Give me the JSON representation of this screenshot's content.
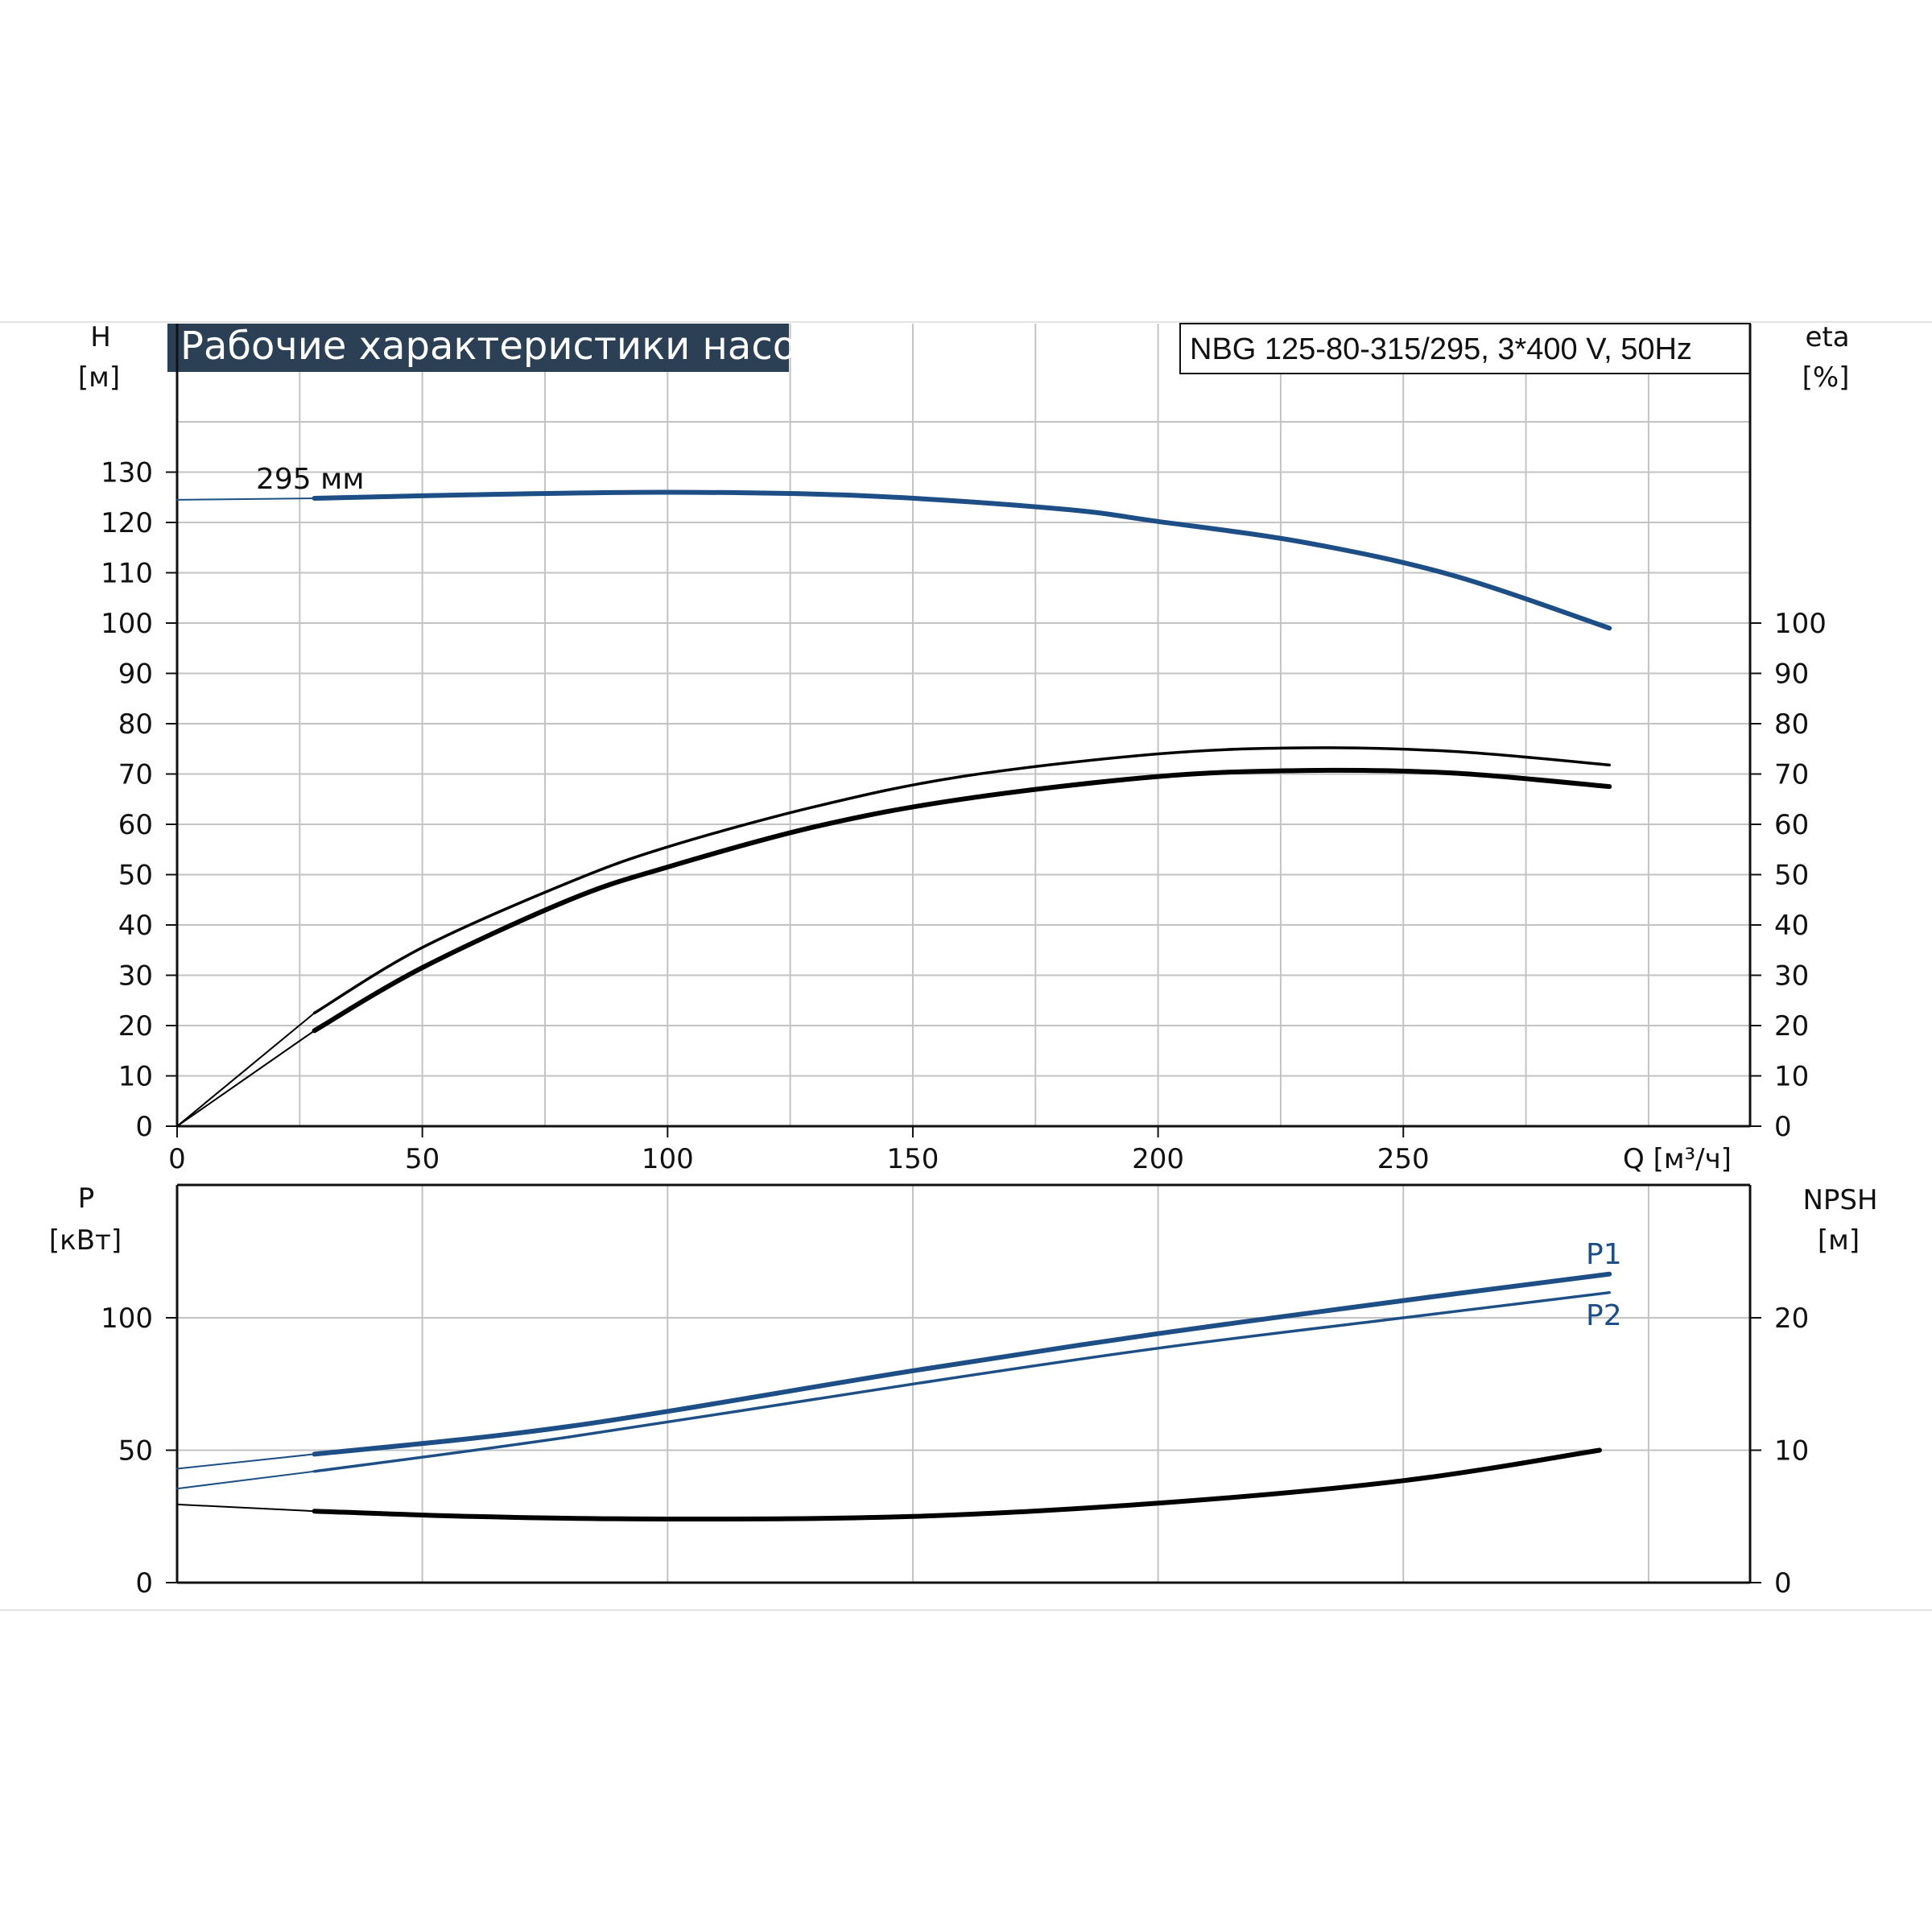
{
  "colors": {
    "blue": "#1d4f86",
    "black": "#000000",
    "grid": "#c3c3c3",
    "title_bg": "#2b3f55",
    "axis": "#111111"
  },
  "chart_data": [
    {
      "panel": "top",
      "type": "line",
      "title": "Рабочие характеристики насоса",
      "subtitle": "NBG 125-80-315/295, 3*400 V, 50Hz",
      "xlabel": "Q [м³/ч]",
      "ylabel_left": "H",
      "ylabel_left_unit": "[м]",
      "ylabel_right": "eta",
      "ylabel_right_unit": "[%]",
      "xlim": [
        0,
        320
      ],
      "xticks": [
        "0",
        "50",
        "100",
        "150",
        "200",
        "250"
      ],
      "ylim_left": [
        0,
        140
      ],
      "yticks_left": [
        "0",
        "10",
        "20",
        "30",
        "40",
        "50",
        "60",
        "70",
        "80",
        "90",
        "100",
        "110",
        "120",
        "130"
      ],
      "ylim_right": [
        0,
        140
      ],
      "yticks_right": [
        "0",
        "10",
        "20",
        "30",
        "40",
        "50",
        "60",
        "70",
        "80",
        "90",
        "100"
      ],
      "grid": true,
      "curve_label": "295 мм",
      "series": [
        {
          "key": "head",
          "axis": "left",
          "color": "#1d4f86",
          "x": [
            0,
            28,
            60,
            100,
            140,
            180,
            200,
            230,
            260,
            292
          ],
          "y": [
            124.5,
            124.8,
            125.5,
            126,
            125.3,
            122.7,
            120.2,
            116,
            109.5,
            99
          ]
        },
        {
          "key": "eta-thin",
          "axis": "right",
          "color": "#000000",
          "x": [
            0,
            28,
            50,
            80,
            100,
            130,
            160,
            200,
            230,
            260,
            292
          ],
          "y": [
            0,
            22.5,
            35.5,
            48.5,
            55.5,
            63.5,
            69.5,
            74,
            75.2,
            74.5,
            71.8
          ]
        },
        {
          "key": "eta-thick",
          "axis": "right",
          "color": "#000000",
          "x": [
            0,
            28,
            50,
            80,
            100,
            130,
            160,
            200,
            230,
            260,
            292
          ],
          "y": [
            0,
            19,
            31.5,
            45,
            51.5,
            59.5,
            65,
            69.5,
            70.7,
            70.2,
            67.5
          ]
        }
      ]
    },
    {
      "panel": "bottom",
      "type": "line",
      "ylabel_left": "P",
      "ylabel_left_unit": "[кВт]",
      "ylabel_right": "NPSH",
      "ylabel_right_unit": "[м]",
      "xlim": [
        0,
        320
      ],
      "ylim_left": [
        0,
        150
      ],
      "yticks_left": [
        "0",
        "50",
        "100"
      ],
      "ylim_right": [
        0,
        30
      ],
      "yticks_right": [
        "0",
        "10",
        "20"
      ],
      "grid": true,
      "series": [
        {
          "key": "P1",
          "name": "P1",
          "axis": "left",
          "color": "#1d4f86",
          "x": [
            0,
            28,
            80,
            150,
            200,
            250,
            292
          ],
          "y": [
            43,
            48.5,
            59,
            80,
            94,
            106.5,
            116.5
          ]
        },
        {
          "key": "P2",
          "name": "P2",
          "axis": "left",
          "color": "#1d4f86",
          "x": [
            0,
            28,
            80,
            150,
            200,
            250,
            292
          ],
          "y": [
            35.5,
            42,
            55,
            75,
            88.5,
            100,
            109.5
          ]
        },
        {
          "key": "npsh",
          "axis": "right",
          "color": "#000000",
          "x": [
            0,
            28,
            60,
            100,
            150,
            200,
            250,
            290
          ],
          "y": [
            5.9,
            5.4,
            5.0,
            4.8,
            5.0,
            6.0,
            7.7,
            10.0
          ]
        }
      ]
    }
  ]
}
